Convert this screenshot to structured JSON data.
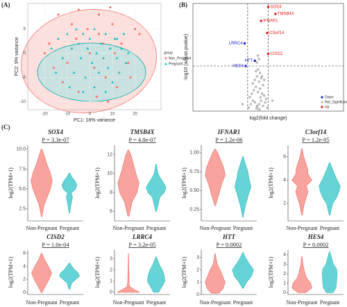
{
  "panel_labels": [
    "(A)",
    "(B)",
    "(C)"
  ],
  "chart_data": [
    {
      "type": "pca",
      "xlabel": "PC1: 18% variance",
      "ylabel": "PC2: 9% variance",
      "legend_title": "group",
      "xlim": [
        -27.5,
        31.5
      ],
      "ylim": [
        -11.7,
        10.3
      ],
      "xticks": [
        -20,
        -10,
        0,
        10,
        20
      ],
      "yticks": [
        -10,
        -5,
        0,
        5
      ],
      "grid": true,
      "series": [
        {
          "name": "Non_Pregnant",
          "color": "#f8766d",
          "x": [
            -14,
            -5,
            4,
            9,
            20,
            22,
            -18,
            -20,
            -10,
            -6,
            -1,
            4,
            2,
            7,
            11,
            14,
            17,
            -12,
            -5,
            3,
            8,
            12,
            18,
            -16,
            0,
            6,
            10,
            -8
          ],
          "y": [
            8,
            9,
            8,
            9.5,
            5,
            4,
            2,
            0,
            -2,
            3,
            5,
            4,
            -3,
            -5,
            0,
            2,
            -2,
            -6,
            -8,
            -9,
            -10,
            -7,
            -5,
            -3,
            0,
            2,
            6,
            6
          ]
        },
        {
          "name": "Pregnant",
          "color": "#00bfc4",
          "x": [
            -17,
            -14,
            -12,
            -10,
            -8,
            -7,
            -5,
            -4,
            -3,
            -2,
            -1,
            0,
            1,
            2,
            3,
            4,
            5,
            6,
            7,
            8,
            9,
            10,
            11,
            12,
            13,
            14,
            15,
            16,
            17,
            -15,
            -9,
            -3,
            2,
            7,
            12,
            -6
          ],
          "y": [
            1,
            3,
            -1,
            4,
            1,
            -4,
            2,
            -1,
            4,
            -5,
            1,
            3,
            -2,
            5,
            0,
            -4,
            2,
            -1,
            4,
            -3,
            1,
            -6,
            3,
            -1,
            -4,
            1,
            4,
            -2,
            0,
            -4,
            -7,
            -8,
            -7,
            -8,
            3,
            5
          ]
        }
      ]
    },
    {
      "type": "volcano",
      "xlabel": "log2(fold change)",
      "ylabel": "-log10 (adjust.pvalue)",
      "xlim": [
        -6.33,
        8.33
      ],
      "ylim": [
        0,
        3.1
      ],
      "reference_lines": {
        "x": [
          -1,
          1
        ],
        "y": [
          1.3
        ]
      },
      "series": [
        {
          "name": "Down",
          "color": "#1f1fd6",
          "x": [
            -1.3,
            -0.3,
            -1.2
          ],
          "y": [
            1.95,
            1.45,
            1.3
          ],
          "labels": [
            "LRRC4",
            "HTT",
            "HES4"
          ]
        },
        {
          "name": "Not_Significant",
          "color": "#b5b5b5",
          "x": [
            -0.9,
            -0.7,
            -0.5,
            -0.3,
            -0.1,
            0.1,
            0.3,
            0.5,
            0.7,
            0.9,
            -0.6,
            -0.4,
            -0.2,
            0,
            0.2,
            0.4,
            0.6,
            -0.3,
            -0.1,
            0.1,
            0.3,
            0.5,
            -0.2,
            0,
            0.2,
            0.4,
            -0.1,
            0.1,
            0,
            -0.5,
            0.6,
            -0.8,
            0.8,
            1.4,
            -1.5,
            0.15,
            -0.15,
            0.05,
            -0.05,
            0.25
          ],
          "y": [
            0.1,
            0.2,
            0.3,
            0.25,
            0.15,
            0.2,
            0.3,
            0.15,
            0.25,
            0.1,
            0.5,
            0.6,
            0.7,
            0.55,
            0.65,
            0.5,
            0.45,
            0.9,
            1.0,
            0.85,
            0.95,
            0.75,
            1.15,
            1.2,
            1.1,
            1.0,
            1.4,
            1.5,
            1.6,
            0.8,
            0.9,
            0.4,
            0.35,
            0.3,
            0.2,
            0.05,
            0.08,
            0.02,
            0.12,
            0.4
          ]
        },
        {
          "name": "Up",
          "color": "#e41a1c",
          "x": [
            1,
            1.7,
            0.3,
            0.9,
            1
          ],
          "y": [
            3.0,
            2.8,
            2.6,
            2.25,
            1.65
          ],
          "labels": [
            "SOX4",
            "TMSB4X",
            "IFNAR1",
            "C3orf14",
            "CISD2"
          ]
        }
      ]
    },
    {
      "type": "violin",
      "title": "SOX4",
      "annotation": "P = 3.3e-07",
      "ylabel": "log2(TPM+1)",
      "ylim": [
        1,
        10.5
      ],
      "yticks": [
        2.5,
        {
          "value": 5,
          "label": "5.0"
        },
        7.5,
        {
          "value": 10,
          "label": "10.0"
        }
      ],
      "groups": [
        {
          "name": "Non-Pregnant",
          "color": "#f8a39d",
          "y": [
            1.5,
            3,
            4,
            5,
            6,
            7,
            8,
            9,
            10
          ],
          "width": [
            0.02,
            0.2,
            0.45,
            0.7,
            0.85,
            0.7,
            0.45,
            0.25,
            0.03
          ]
        },
        {
          "name": "Pregnant",
          "color": "#66d4d6",
          "y": [
            2,
            3,
            4,
            4.5,
            5,
            5.5,
            6,
            6.5,
            7
          ],
          "width": [
            0.02,
            0.12,
            0.25,
            0.15,
            0.5,
            0.6,
            0.45,
            0.2,
            0.03
          ]
        }
      ]
    },
    {
      "type": "violin",
      "title": "TMSB4X",
      "annotation": "P = 4.0e-07",
      "ylabel": "log2(TPM+1)",
      "ylim": [
        5,
        13
      ],
      "yticks": [
        6,
        8,
        10,
        12
      ],
      "groups": [
        {
          "name": "Non-Pregnant",
          "color": "#f8a39d",
          "y": [
            5.5,
            7,
            8,
            9,
            10,
            11,
            12,
            12.5
          ],
          "width": [
            0.05,
            0.3,
            0.7,
            0.85,
            0.6,
            0.4,
            0.2,
            0.02
          ]
        },
        {
          "name": "Pregnant",
          "color": "#66d4d6",
          "y": [
            6,
            7.5,
            8,
            8.5,
            9,
            9.5,
            10,
            11
          ],
          "width": [
            0.03,
            0.3,
            0.65,
            0.8,
            0.6,
            0.35,
            0.15,
            0.02
          ]
        }
      ]
    },
    {
      "type": "violin",
      "title": "IFNAR1",
      "annotation": "P = 1.2e-06",
      "ylabel": "log2(TPM+1)",
      "ylim": [
        0.1,
        1.1
      ],
      "yticks": [
        0.25,
        {
          "value": 0.5,
          "label": "0.50"
        },
        0.75,
        {
          "value": 1,
          "label": "1.00"
        }
      ],
      "groups": [
        {
          "name": "Non-Pregnant",
          "color": "#f8a39d",
          "y": [
            0.3,
            0.45,
            0.6,
            0.7,
            0.8,
            0.9,
            1.0,
            1.05
          ],
          "width": [
            0.03,
            0.3,
            0.55,
            0.8,
            0.7,
            0.45,
            0.2,
            0.02
          ]
        },
        {
          "name": "Pregnant",
          "color": "#66d4d6",
          "y": [
            0.15,
            0.3,
            0.45,
            0.55,
            0.65,
            0.75,
            0.85,
            0.95
          ],
          "width": [
            0.02,
            0.2,
            0.45,
            0.65,
            0.5,
            0.4,
            0.2,
            0.02
          ]
        }
      ]
    },
    {
      "type": "violin",
      "title": "C3orf14",
      "annotation": "P = 1.2e-05",
      "ylabel": "log2(TPM+1)",
      "ylim": [
        0.5,
        7
      ],
      "yticks": [
        2,
        4,
        6
      ],
      "groups": [
        {
          "name": "Non-Pregnant",
          "color": "#f8a39d",
          "y": [
            1,
            2,
            3,
            3.5,
            4,
            4.5,
            5,
            6,
            6.7
          ],
          "width": [
            0.03,
            0.2,
            0.5,
            0.35,
            0.8,
            0.5,
            0.45,
            0.15,
            0.02
          ]
        },
        {
          "name": "Pregnant",
          "color": "#66d4d6",
          "y": [
            1,
            2,
            2.5,
            3,
            3.5,
            4,
            5,
            5.5
          ],
          "width": [
            0.03,
            0.25,
            0.55,
            0.75,
            0.85,
            0.6,
            0.2,
            0.02
          ]
        }
      ]
    },
    {
      "type": "violin",
      "title": "CISD2",
      "annotation": "P = 1.0e-04",
      "ylabel": "log2(TPM+1)",
      "ylim": [
        -0.3,
        6.5
      ],
      "yticks": [
        0,
        2,
        4,
        6
      ],
      "groups": [
        {
          "name": "Non-Pregnant",
          "color": "#f8a39d",
          "y": [
            0,
            1,
            2,
            3,
            4,
            5,
            6
          ],
          "width": [
            0.03,
            0.3,
            0.6,
            0.8,
            0.55,
            0.25,
            0.02
          ]
        },
        {
          "name": "Pregnant",
          "color": "#66d4d6",
          "y": [
            0.5,
            1.5,
            2,
            2.5,
            3,
            3.5,
            4.5
          ],
          "width": [
            0.03,
            0.2,
            0.5,
            0.8,
            0.7,
            0.4,
            0.03
          ]
        }
      ]
    },
    {
      "type": "violin",
      "title": "LRRC4",
      "annotation": "P = 3.2e-05",
      "ylabel": "log2(TPM+1)",
      "ylim": [
        -0.2,
        3.8
      ],
      "yticks": [
        0,
        1,
        2,
        3
      ],
      "groups": [
        {
          "name": "Non-Pregnant",
          "color": "#f8a39d",
          "y": [
            0,
            0.2,
            0.5,
            1,
            1.5,
            2,
            3.5
          ],
          "width": [
            0.9,
            0.55,
            0.1,
            0.05,
            0.05,
            0.03,
            0.01
          ]
        },
        {
          "name": "Pregnant",
          "color": "#66d4d6",
          "y": [
            0,
            0.5,
            1,
            1.5,
            2,
            2.5,
            3.2
          ],
          "width": [
            0.2,
            0.45,
            0.7,
            0.65,
            0.5,
            0.25,
            0.02
          ]
        }
      ]
    },
    {
      "type": "violin",
      "title": "HTT",
      "annotation": "P = 0.0002",
      "ylabel": "log2(TPM+1)",
      "ylim": [
        0,
        3.6
      ],
      "yticks": [
        0,
        1,
        2,
        3
      ],
      "groups": [
        {
          "name": "Non-Pregnant",
          "color": "#f8a39d",
          "y": [
            0.1,
            0.5,
            1,
            1.5,
            2,
            2.5,
            3.3
          ],
          "width": [
            0.3,
            0.65,
            0.8,
            0.6,
            0.4,
            0.15,
            0.02
          ]
        },
        {
          "name": "Pregnant",
          "color": "#66d4d6",
          "y": [
            0.5,
            1,
            1.5,
            2,
            2.5,
            3,
            3.4
          ],
          "width": [
            0.03,
            0.3,
            0.7,
            0.85,
            0.5,
            0.2,
            0.02
          ]
        }
      ]
    },
    {
      "type": "violin",
      "title": "HES4",
      "annotation": "P = 0.0002",
      "ylabel": "log2(TPM+1)",
      "ylim": [
        -0.2,
        4.5
      ],
      "yticks": [
        0,
        1,
        2,
        3,
        4
      ],
      "groups": [
        {
          "name": "Non-Pregnant",
          "color": "#f8a39d",
          "y": [
            0,
            0.5,
            1,
            1.5,
            2,
            3,
            3.8
          ],
          "width": [
            0.3,
            0.8,
            0.7,
            0.4,
            0.25,
            0.08,
            0.02
          ]
        },
        {
          "name": "Pregnant",
          "color": "#66d4d6",
          "y": [
            0,
            0.5,
            1,
            2,
            2.5,
            3,
            4.3
          ],
          "width": [
            0.25,
            0.5,
            0.55,
            0.6,
            0.55,
            0.3,
            0.02
          ]
        }
      ]
    }
  ]
}
